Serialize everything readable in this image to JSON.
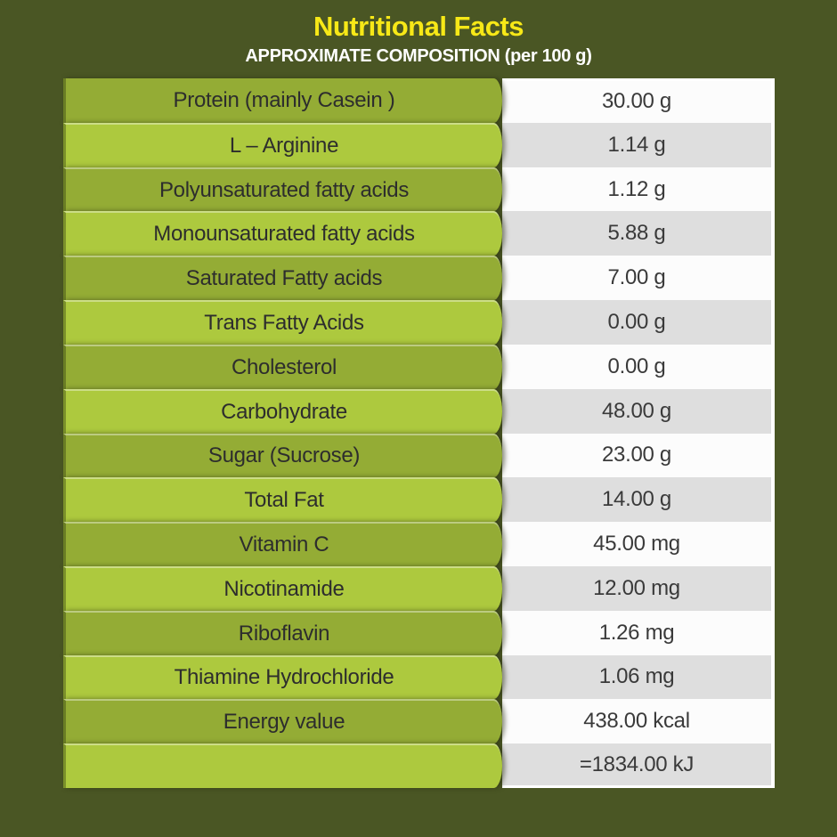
{
  "header": {
    "title": "Nutritional Facts",
    "subtitle": "APPROXIMATE COMPOSITION (per 100 g)"
  },
  "colors": {
    "background": "#4a5624",
    "row_green_dark": "#94ac35",
    "row_green_light": "#adc93e",
    "value_white": "#fcfcfc",
    "value_gray": "#dedede",
    "title_yellow": "#f7e817",
    "subtitle_white": "#ffffff",
    "label_text": "#2d2d2d",
    "value_text": "#3a3a3a"
  },
  "table": {
    "rows": [
      {
        "label": "Protein (mainly Casein )",
        "value": "30.00 g"
      },
      {
        "label": "L – Arginine",
        "value": "1.14 g"
      },
      {
        "label": "Polyunsaturated fatty acids",
        "value": "1.12 g"
      },
      {
        "label": "Monounsaturated fatty acids",
        "value": "5.88 g"
      },
      {
        "label": "Saturated Fatty acids",
        "value": "7.00 g"
      },
      {
        "label": "Trans Fatty Acids",
        "value": "0.00 g"
      },
      {
        "label": "Cholesterol",
        "value": "0.00 g"
      },
      {
        "label": "Carbohydrate",
        "value": "48.00 g"
      },
      {
        "label": "Sugar (Sucrose)",
        "value": "23.00 g"
      },
      {
        "label": "Total Fat",
        "value": "14.00 g"
      },
      {
        "label": "Vitamin C",
        "value": "45.00 mg"
      },
      {
        "label": "Nicotinamide",
        "value": "12.00 mg"
      },
      {
        "label": "Riboflavin",
        "value": "1.26 mg"
      },
      {
        "label": "Thiamine Hydrochloride",
        "value": "1.06 mg"
      },
      {
        "label": "Energy value",
        "value": "438.00 kcal"
      },
      {
        "label": "",
        "value": "=1834.00 kJ"
      }
    ]
  }
}
